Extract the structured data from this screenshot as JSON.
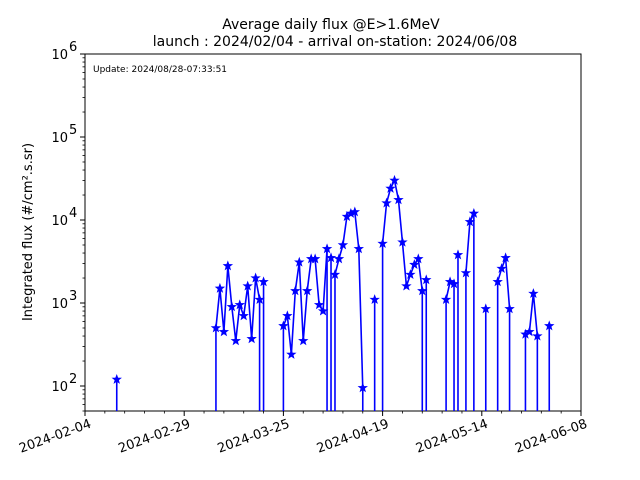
{
  "chart_data": {
    "type": "line",
    "title": "Average daily flux @E>1.6MeV",
    "subtitle": "launch : 2024/02/04 - arrival on-station: 2024/06/08",
    "annotation": "Update: 2024/08/28-07:33:51",
    "ylabel": "Integrated flux (#/cm².s.sr)",
    "yscale": "log",
    "ylim": [
      50,
      1000000
    ],
    "xlim": [
      "2024-02-04",
      "2024-06-08"
    ],
    "x_tick_labels": [
      "2024-02-04",
      "2024-02-29",
      "2024-03-25",
      "2024-04-19",
      "2024-05-14",
      "2024-06-08"
    ],
    "y_tick_labels": [
      {
        "base": "10",
        "exp": "2"
      },
      {
        "base": "10",
        "exp": "3"
      },
      {
        "base": "10",
        "exp": "4"
      },
      {
        "base": "10",
        "exp": "5"
      },
      {
        "base": "10",
        "exp": "6"
      }
    ],
    "marker": "star",
    "color": "#0000ff",
    "grid": false,
    "segments": [
      {
        "x": [
          "2024-02-12"
        ],
        "y": [
          120
        ]
      },
      {
        "x": [
          "2024-03-08",
          "2024-03-09",
          "2024-03-10",
          "2024-03-11",
          "2024-03-12",
          "2024-03-13",
          "2024-03-14",
          "2024-03-15",
          "2024-03-16",
          "2024-03-17",
          "2024-03-18",
          "2024-03-19"
        ],
        "y": [
          500,
          1500,
          450,
          2800,
          900,
          350,
          950,
          700,
          1600,
          370,
          2000,
          1100
        ]
      },
      {
        "x": [
          "2024-03-20"
        ],
        "y": [
          1800
        ]
      },
      {
        "x": [
          "2024-03-25",
          "2024-03-26",
          "2024-03-27",
          "2024-03-28",
          "2024-03-29",
          "2024-03-30",
          "2024-03-31",
          "2024-04-01",
          "2024-04-02",
          "2024-04-03",
          "2024-04-04",
          "2024-04-05"
        ],
        "y": [
          530,
          700,
          240,
          1400,
          3100,
          350,
          1400,
          3400,
          3400,
          950,
          800,
          4500
        ]
      },
      {
        "x": [
          "2024-04-06"
        ],
        "y": [
          3500
        ]
      },
      {
        "x": [
          "2024-04-07",
          "2024-04-08",
          "2024-04-09",
          "2024-04-10",
          "2024-04-11",
          "2024-04-12",
          "2024-04-13",
          "2024-04-14"
        ],
        "y": [
          2200,
          3400,
          5000,
          11000,
          12000,
          12500,
          4500,
          95
        ]
      },
      {
        "x": [
          "2024-04-17"
        ],
        "y": [
          1100
        ]
      },
      {
        "x": [
          "2024-04-19",
          "2024-04-20",
          "2024-04-21",
          "2024-04-22",
          "2024-04-23",
          "2024-04-24",
          "2024-04-25",
          "2024-04-26",
          "2024-04-27",
          "2024-04-28",
          "2024-04-29"
        ],
        "y": [
          5200,
          16000,
          24000,
          30000,
          17500,
          5400,
          1600,
          2200,
          2900,
          3400,
          1400
        ]
      },
      {
        "x": [
          "2024-04-30"
        ],
        "y": [
          1900
        ]
      },
      {
        "x": [
          "2024-05-05",
          "2024-05-06",
          "2024-05-07"
        ],
        "y": [
          1100,
          1800,
          1700
        ]
      },
      {
        "x": [
          "2024-05-08"
        ],
        "y": [
          3800
        ]
      },
      {
        "x": [
          "2024-05-10",
          "2024-05-11",
          "2024-05-12"
        ],
        "y": [
          2300,
          9500,
          12000
        ]
      },
      {
        "x": [
          "2024-05-15"
        ],
        "y": [
          850
        ]
      },
      {
        "x": [
          "2024-05-18",
          "2024-05-19",
          "2024-05-20",
          "2024-05-21"
        ],
        "y": [
          1800,
          2600,
          3500,
          850
        ]
      },
      {
        "x": [
          "2024-05-25",
          "2024-05-26",
          "2024-05-27",
          "2024-05-28"
        ],
        "y": [
          420,
          450,
          1300,
          400
        ]
      },
      {
        "x": [
          "2024-05-31"
        ],
        "y": [
          530
        ]
      }
    ]
  }
}
